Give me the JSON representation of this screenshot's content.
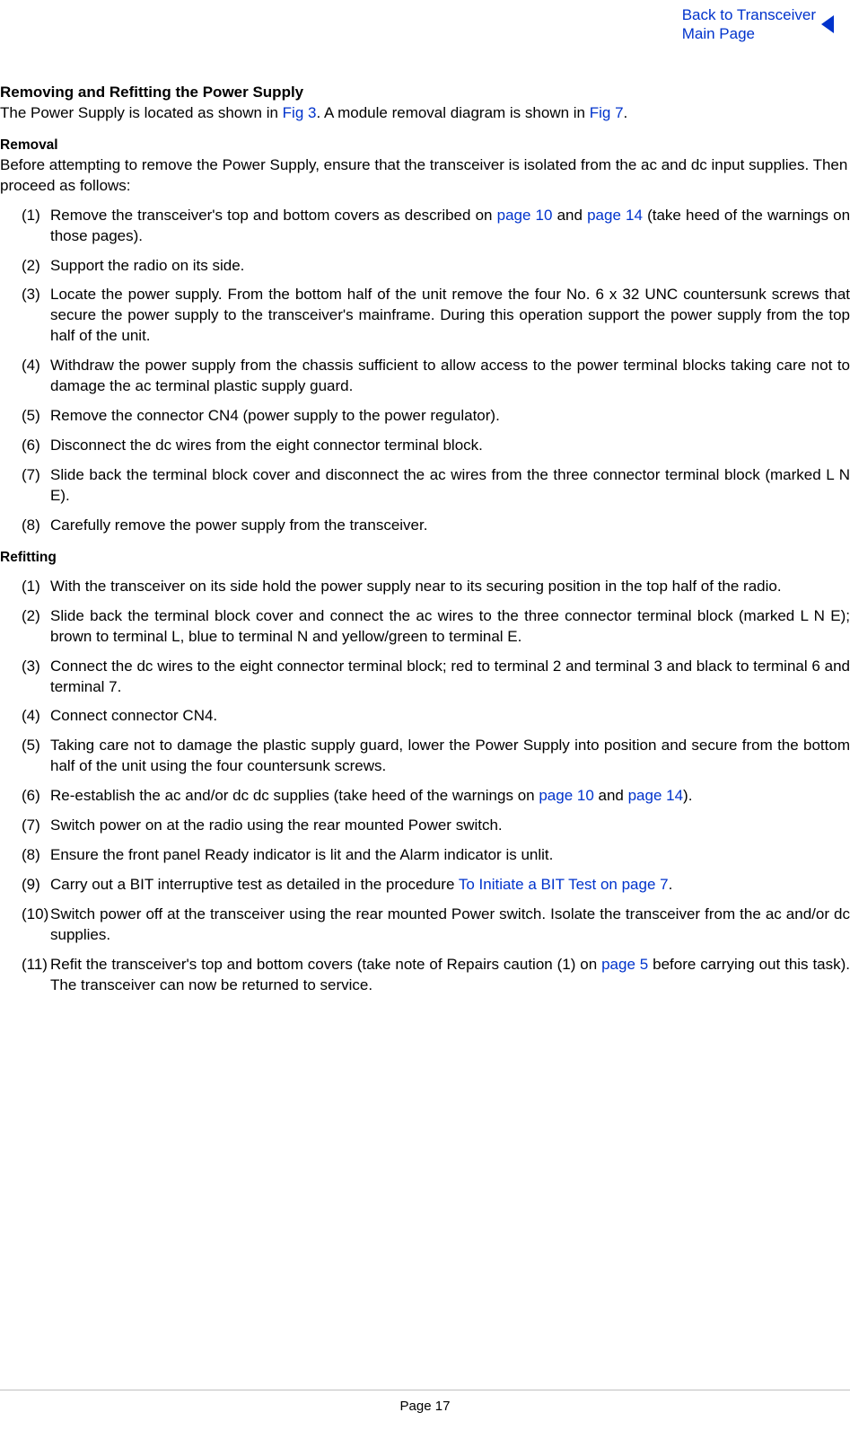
{
  "nav": {
    "back_line1": "Back to Transceiver",
    "back_line2": "Main Page"
  },
  "title": "Removing and Refitting the Power Supply",
  "intro": {
    "pre_fig3": "The Power Supply is located as shown in ",
    "fig3": "Fig 3",
    "mid": ". A module removal diagram is shown in ",
    "fig7": "Fig 7",
    "end": "."
  },
  "removal": {
    "heading": "Removal",
    "lead": "Before attempting to remove the Power Supply, ensure that the transceiver is isolated from the ac and dc input supplies. Then proceed as follows:",
    "steps": [
      {
        "num": "(1)",
        "pre": "Remove the transceiver's top and bottom covers as described on ",
        "l1": "page 10",
        "mid": " and ",
        "l2": "page 14",
        "post": " (take heed of the warnings on those pages)."
      },
      {
        "num": "(2)",
        "text": "Support the radio on its side."
      },
      {
        "num": "(3)",
        "text": "Locate the power supply. From the bottom half of the unit remove the four No. 6 x 32 UNC countersunk screws that secure the power supply to the transceiver's mainframe. During this operation support the power supply from the top half of the unit."
      },
      {
        "num": "(4)",
        "text": "Withdraw the power supply from the chassis sufficient to allow access to the power terminal blocks taking care not to damage the ac terminal plastic supply guard."
      },
      {
        "num": "(5)",
        "text": "Remove the connector CN4 (power supply to the power regulator)."
      },
      {
        "num": "(6)",
        "text": "Disconnect the dc wires from the eight connector terminal block."
      },
      {
        "num": "(7)",
        "text": "Slide back the terminal block cover and disconnect the ac wires from the three connector terminal block (marked L N E)."
      },
      {
        "num": "(8)",
        "text": "Carefully remove the power supply from the transceiver."
      }
    ]
  },
  "refitting": {
    "heading": "Refitting",
    "steps": [
      {
        "num": "(1)",
        "text": "With the transceiver on its side hold the power supply near to its securing position in the top half of the radio."
      },
      {
        "num": "(2)",
        "text": "Slide back the terminal block cover and connect the ac wires to the three connector terminal block (marked L N E); brown to terminal L, blue to terminal N and yellow/green to terminal E."
      },
      {
        "num": "(3)",
        "text": "Connect the dc wires to the eight connector terminal block; red to terminal 2 and terminal 3 and black to terminal 6 and terminal 7."
      },
      {
        "num": "(4)",
        "text": "Connect connector CN4."
      },
      {
        "num": "(5)",
        "text": "Taking care not to damage the plastic supply guard, lower the Power Supply into position and secure from the bottom half of the unit using the four countersunk screws."
      },
      {
        "num": "(6)",
        "pre": "Re-establish the ac and/or dc dc supplies (take heed of the warnings on ",
        "l1": "page 10",
        "mid": " and ",
        "l2": "page 14",
        "post": ")."
      },
      {
        "num": "(7)",
        "text": "Switch power on at the radio using the rear mounted Power switch."
      },
      {
        "num": "(8)",
        "text": "Ensure the front panel Ready indicator is lit and the Alarm indicator is unlit."
      },
      {
        "num": "(9)",
        "pre": "Carry out a BIT interruptive test as detailed in the procedure ",
        "l1": "To Initiate a BIT Test on page 7",
        "post": "."
      },
      {
        "num": "(10)",
        "text": "Switch power off at the transceiver using the rear mounted Power switch. Isolate the transceiver from the ac and/or dc supplies."
      },
      {
        "num": "(11)",
        "pre": "Refit the transceiver's top and bottom covers (take note of Repairs caution (1) on ",
        "l1": "page 5",
        "post": " before carrying out this task). The transceiver can now be returned to service."
      }
    ]
  },
  "footer": "Page 17"
}
